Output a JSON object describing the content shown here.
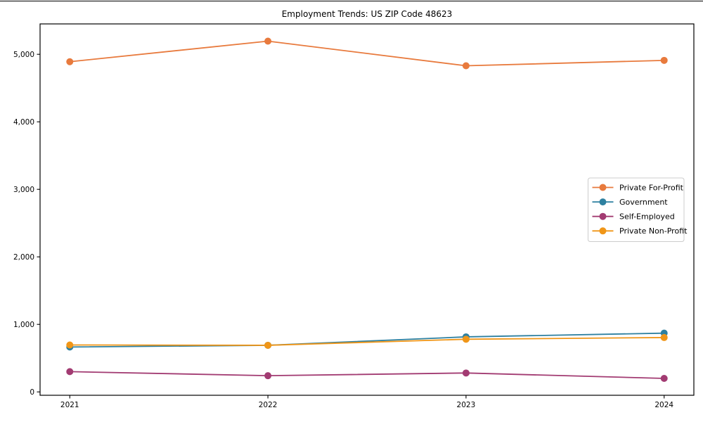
{
  "figure": {
    "title": "Employment Trends: US ZIP Code 48623"
  },
  "chart_data": {
    "type": "line",
    "title": "Employment Trends: US ZIP Code 48623",
    "xlabel": "",
    "ylabel": "",
    "x": [
      2021,
      2022,
      2023,
      2024
    ],
    "x_tick_labels": [
      "2021",
      "2022",
      "2023",
      "2024"
    ],
    "y_ticks": [
      0,
      1000,
      2000,
      3000,
      4000,
      5000
    ],
    "y_tick_labels": [
      "0",
      "1,000",
      "2,000",
      "3,000",
      "4,000",
      "5,000"
    ],
    "xlim": [
      2020.85,
      2024.15
    ],
    "ylim": [
      -50,
      5450
    ],
    "grid": false,
    "marker": "circle",
    "legend": {
      "position": "center-right",
      "entries": [
        "Private For-Profit",
        "Government",
        "Self-Employed",
        "Private Non-Profit"
      ]
    },
    "series": [
      {
        "name": "Private For-Profit",
        "color": "#e87a3d",
        "values": [
          4890,
          5195,
          4830,
          4910
        ]
      },
      {
        "name": "Government",
        "color": "#2e80a0",
        "values": [
          665,
          690,
          815,
          870
        ]
      },
      {
        "name": "Self-Employed",
        "color": "#a23b72",
        "values": [
          300,
          240,
          280,
          200
        ]
      },
      {
        "name": "Private Non-Profit",
        "color": "#f09618",
        "values": [
          695,
          690,
          780,
          805
        ]
      }
    ]
  }
}
